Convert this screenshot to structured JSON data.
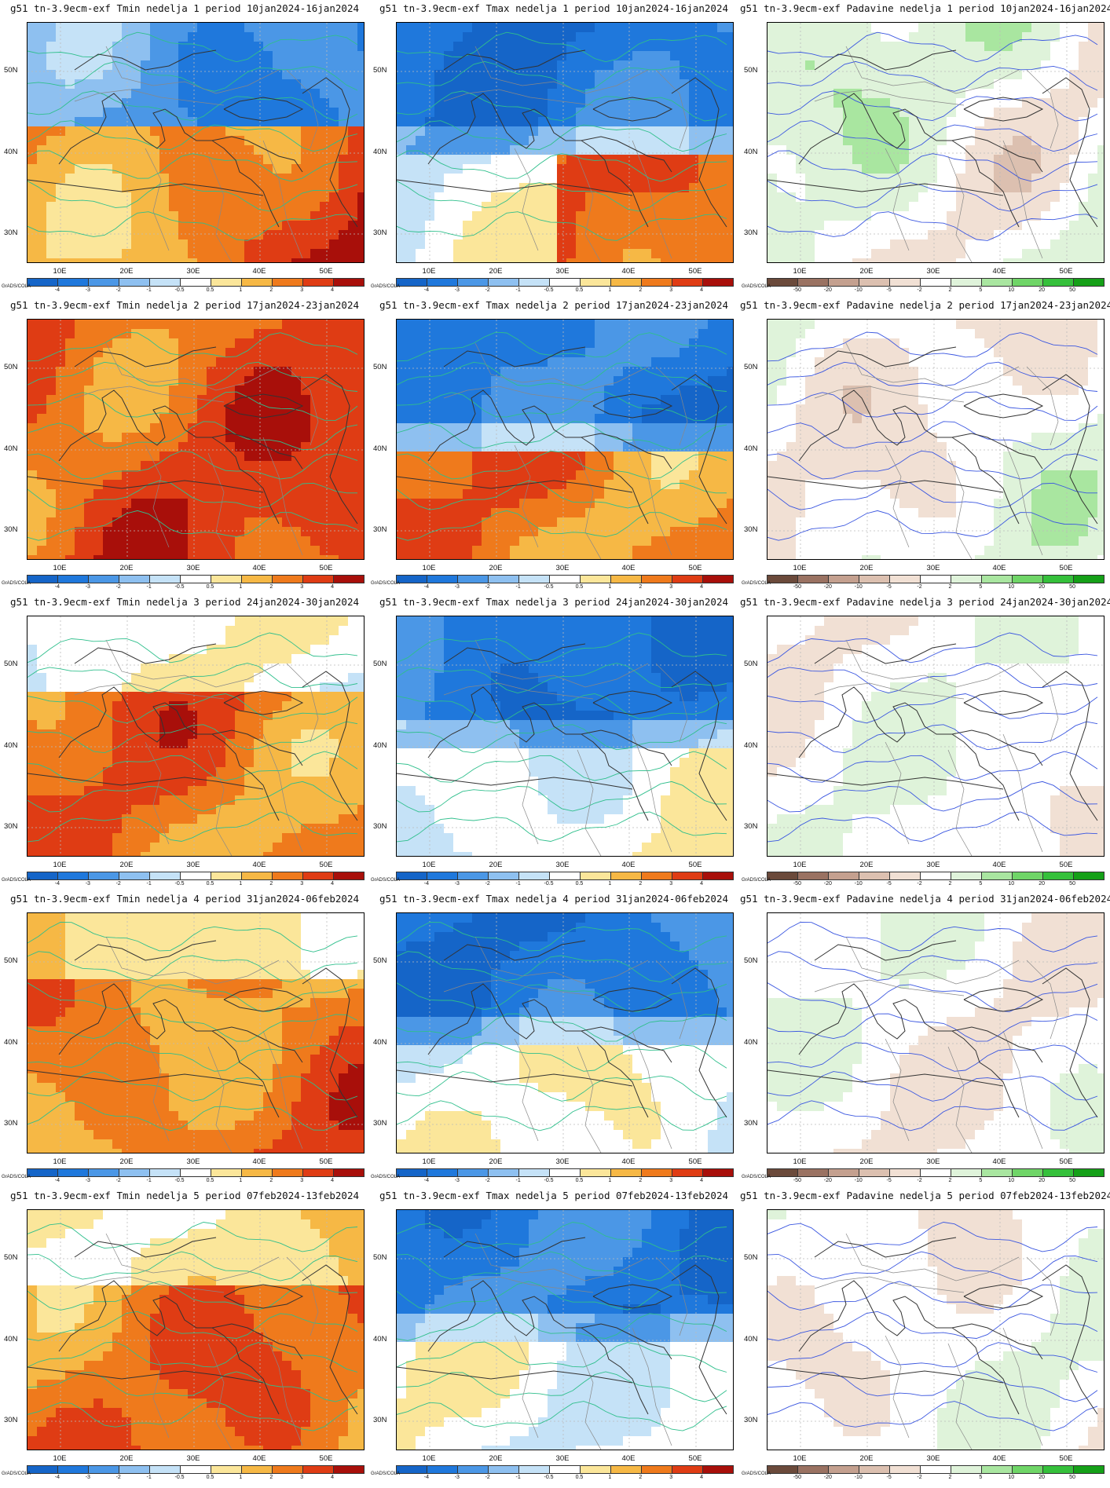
{
  "credit": "GrADS/COLA",
  "lat_labels": [
    "50N",
    "40N",
    "30N"
  ],
  "lon_labels": [
    "10E",
    "20E",
    "30E",
    "40E",
    "50E"
  ],
  "colorbars": {
    "temp": {
      "labels": [
        "-4",
        "-3",
        "-2",
        "-1",
        "-0.5",
        "0.5",
        "1",
        "2",
        "3",
        "4"
      ],
      "colors": [
        "#1565c8",
        "#1f78dc",
        "#4b97e6",
        "#8ec0f0",
        "#c5e2f7",
        "#ffffff",
        "#fbe69a",
        "#f6b845",
        "#ef7a1c",
        "#df3c14",
        "#a80f0a"
      ]
    },
    "precip": {
      "labels": [
        "-50",
        "-20",
        "-10",
        "-5",
        "-2",
        "2",
        "5",
        "10",
        "20",
        "50"
      ],
      "colors": [
        "#6b4a3b",
        "#9a7262",
        "#c4a08f",
        "#dcc0b0",
        "#f1e0d4",
        "#ffffff",
        "#dff3da",
        "#a9e6a0",
        "#6fd567",
        "#35c03b",
        "#15a018"
      ]
    }
  },
  "rows": [
    {
      "titles": [
        "g51 tn-3.9ecm-exf Tmin nedelja 1 period 10jan2024-16jan2024",
        "g51 tn-3.9ecm-exf Tmax nedelja 1 period 10jan2024-16jan2024",
        "g51 tn-3.9ecm-exf Padavine nedelja 1 period 10jan2024-16jan2024"
      ]
    },
    {
      "titles": [
        "g51 tn-3.9ecm-exf Tmin nedelja 2 period 17jan2024-23jan2024",
        "g51 tn-3.9ecm-exf Tmax nedelja 2 period 17jan2024-23jan2024",
        "g51 tn-3.9ecm-exf Padavine nedelja 2 period 17jan2024-23jan2024"
      ]
    },
    {
      "titles": [
        "g51 tn-3.9ecm-exf Tmin nedelja 3 period 24jan2024-30jan2024",
        "g51 tn-3.9ecm-exf Tmax nedelja 3 period 24jan2024-30jan2024",
        "g51 tn-3.9ecm-exf Padavine nedelja 3 period 24jan2024-30jan2024"
      ]
    },
    {
      "titles": [
        "g51 tn-3.9ecm-exf Tmin nedelja 4 period 31jan2024-06feb2024",
        "g51 tn-3.9ecm-exf Tmax nedelja 4 period 31jan2024-06feb2024",
        "g51 tn-3.9ecm-exf Padavine nedelja 4 period 31jan2024-06feb2024"
      ]
    },
    {
      "titles": [
        "g51 tn-3.9ecm-exf Tmin nedelja 5 period 07feb2024-13feb2024",
        "g51 tn-3.9ecm-exf Tmax nedelja 5 period 07feb2024-13feb2024",
        "g51 tn-3.9ecm-exf Padavine nedelja 5 period 07feb2024-13feb2024"
      ]
    }
  ]
}
